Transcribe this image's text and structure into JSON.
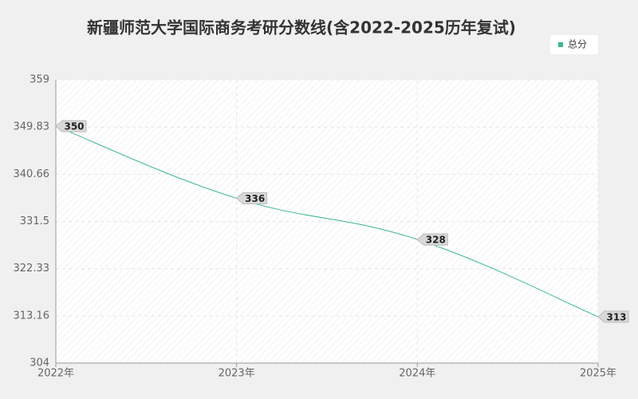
{
  "chart_data": {
    "type": "line",
    "title": "新疆师范大学国际商务考研分数线(含2022-2025历年复试)",
    "categories": [
      "2022年",
      "2023年",
      "2024年",
      "2025年"
    ],
    "series": [
      {
        "name": "总分",
        "color": "#3cb88a",
        "values": [
          350,
          336,
          328,
          313
        ]
      }
    ],
    "ylim": [
      304,
      359
    ],
    "yticks": [
      304,
      313.16,
      322.33,
      331.5,
      340.66,
      349.83,
      359
    ],
    "grid": true,
    "legend": "top-right"
  }
}
